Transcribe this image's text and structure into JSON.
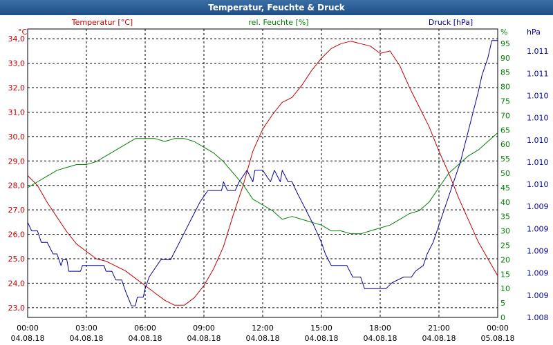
{
  "window": {
    "title": "Temperatur, Feuchte & Druck"
  },
  "chart_data": {
    "type": "line",
    "title": "Temperatur, Feuchte & Druck",
    "x_ticks": [
      {
        "time": "00:00",
        "date": "04.08.18",
        "hour": 0
      },
      {
        "time": "03:00",
        "date": "04.08.18",
        "hour": 3
      },
      {
        "time": "06:00",
        "date": "04.08.18",
        "hour": 6
      },
      {
        "time": "09:00",
        "date": "04.08.18",
        "hour": 9
      },
      {
        "time": "12:00",
        "date": "04.08.18",
        "hour": 12
      },
      {
        "time": "15:00",
        "date": "04.08.18",
        "hour": 15
      },
      {
        "time": "18:00",
        "date": "04.08.18",
        "hour": 18
      },
      {
        "time": "21:00",
        "date": "04.08.18",
        "hour": 21
      },
      {
        "time": "00:00",
        "date": "05.08.18",
        "hour": 24
      }
    ],
    "xlim": [
      0,
      24
    ],
    "grid": true,
    "axes": {
      "temperature": {
        "label": "Temperatur [°C]",
        "unit": "°C",
        "color": "#c00000",
        "side": "left",
        "ylim": [
          22.6,
          34.4
        ],
        "tick_values": [
          23.0,
          24.0,
          25.0,
          26.0,
          27.0,
          28.0,
          29.0,
          30.0,
          31.0,
          32.0,
          33.0,
          34.0
        ],
        "tick_labels": [
          "23,0",
          "24,0",
          "25,0",
          "26,0",
          "27,0",
          "28,0",
          "29,0",
          "30,0",
          "31,0",
          "32,0",
          "33,0",
          "34,0"
        ]
      },
      "humidity": {
        "label": "rel. Feuchte [%]",
        "unit": "%",
        "color": "#008000",
        "side": "right",
        "ylim": [
          0,
          100
        ],
        "tick_values": [
          0,
          5,
          10,
          15,
          20,
          25,
          30,
          35,
          40,
          45,
          50,
          55,
          60,
          65,
          70,
          75,
          80,
          85,
          90,
          95
        ],
        "tick_labels": [
          "0",
          "5",
          "10",
          "15",
          "20",
          "25",
          "30",
          "35",
          "40",
          "45",
          "50",
          "55",
          "60",
          "65",
          "70",
          "75",
          "80",
          "85",
          "90",
          "95"
        ]
      },
      "pressure": {
        "label": "Druck [hPa]",
        "unit": "hPa",
        "color": "#000099",
        "side": "right-outer",
        "ylim": [
          0,
          100
        ],
        "tick_values": [
          0,
          7.7,
          15.4,
          23.1,
          30.8,
          38.5,
          46.2,
          53.8,
          61.5,
          69.2,
          76.9,
          84.6,
          92.3
        ],
        "tick_labels": [
          "1.008",
          "1.009",
          "1.009",
          "1.009",
          "1.009",
          "1.009",
          "1.010",
          "1.010",
          "1.010",
          "1.010",
          "1.010",
          "1.011",
          "1.011"
        ]
      }
    },
    "series": [
      {
        "name": "Temperatur",
        "axis": "temperature",
        "points": [
          [
            0,
            28.4
          ],
          [
            0.5,
            28.0
          ],
          [
            1,
            27.3
          ],
          [
            1.5,
            26.7
          ],
          [
            2,
            26.1
          ],
          [
            2.5,
            25.6
          ],
          [
            3,
            25.3
          ],
          [
            3.5,
            25.0
          ],
          [
            4,
            24.9
          ],
          [
            4.5,
            24.7
          ],
          [
            5,
            24.5
          ],
          [
            5.5,
            24.2
          ],
          [
            6,
            23.9
          ],
          [
            6.5,
            23.6
          ],
          [
            7,
            23.3
          ],
          [
            7.5,
            23.1
          ],
          [
            8,
            23.1
          ],
          [
            8.5,
            23.4
          ],
          [
            9,
            23.9
          ],
          [
            9.5,
            24.6
          ],
          [
            10,
            25.5
          ],
          [
            10.5,
            26.8
          ],
          [
            11,
            28.0
          ],
          [
            11.5,
            29.4
          ],
          [
            12,
            30.3
          ],
          [
            12.5,
            30.9
          ],
          [
            13,
            31.4
          ],
          [
            13.5,
            31.6
          ],
          [
            14,
            32.1
          ],
          [
            14.5,
            32.7
          ],
          [
            15,
            33.2
          ],
          [
            15.5,
            33.6
          ],
          [
            16,
            33.8
          ],
          [
            16.5,
            33.9
          ],
          [
            17,
            33.8
          ],
          [
            17.5,
            33.7
          ],
          [
            18,
            33.4
          ],
          [
            18.5,
            33.5
          ],
          [
            19,
            32.9
          ],
          [
            19.5,
            32.0
          ],
          [
            20,
            31.2
          ],
          [
            20.5,
            30.4
          ],
          [
            21,
            29.4
          ],
          [
            21.5,
            28.5
          ],
          [
            22,
            27.5
          ],
          [
            22.5,
            26.6
          ],
          [
            23,
            25.7
          ],
          [
            23.5,
            25.0
          ],
          [
            24,
            24.3
          ]
        ]
      },
      {
        "name": "rel. Feuchte",
        "axis": "humidity",
        "points": [
          [
            0,
            45
          ],
          [
            0.5,
            47
          ],
          [
            1,
            49
          ],
          [
            1.5,
            51
          ],
          [
            2,
            52
          ],
          [
            2.5,
            53
          ],
          [
            3,
            53
          ],
          [
            3.5,
            54
          ],
          [
            4,
            56
          ],
          [
            4.5,
            58
          ],
          [
            5,
            60
          ],
          [
            5.5,
            62
          ],
          [
            6,
            62
          ],
          [
            6.5,
            62
          ],
          [
            7,
            61
          ],
          [
            7.5,
            62
          ],
          [
            8,
            62
          ],
          [
            8.5,
            61
          ],
          [
            9,
            59
          ],
          [
            9.5,
            57
          ],
          [
            10,
            54
          ],
          [
            10.5,
            50
          ],
          [
            11,
            46
          ],
          [
            11.5,
            41
          ],
          [
            12,
            39
          ],
          [
            12.5,
            37
          ],
          [
            13,
            34
          ],
          [
            13.5,
            35
          ],
          [
            14,
            34
          ],
          [
            14.5,
            33
          ],
          [
            15,
            32
          ],
          [
            15.5,
            30
          ],
          [
            16,
            30
          ],
          [
            16.5,
            29
          ],
          [
            17,
            29
          ],
          [
            17.5,
            30
          ],
          [
            18,
            31
          ],
          [
            18.5,
            32
          ],
          [
            19,
            34
          ],
          [
            19.5,
            36
          ],
          [
            20,
            37
          ],
          [
            20.5,
            40
          ],
          [
            21,
            45
          ],
          [
            21.5,
            50
          ],
          [
            22,
            53
          ],
          [
            22.5,
            56
          ],
          [
            23,
            58
          ],
          [
            23.5,
            61
          ],
          [
            24,
            64
          ]
        ]
      },
      {
        "name": "Druck",
        "axis": "pressure",
        "points": [
          [
            0,
            33
          ],
          [
            0.2,
            30
          ],
          [
            0.5,
            30
          ],
          [
            0.7,
            26
          ],
          [
            1,
            26
          ],
          [
            1.3,
            22
          ],
          [
            1.5,
            22
          ],
          [
            1.7,
            18
          ],
          [
            1.8,
            20
          ],
          [
            2,
            20
          ],
          [
            2.1,
            16
          ],
          [
            2.5,
            16
          ],
          [
            2.7,
            16
          ],
          [
            2.8,
            18
          ],
          [
            3.5,
            18
          ],
          [
            3.9,
            18
          ],
          [
            4,
            16
          ],
          [
            4.3,
            16
          ],
          [
            4.5,
            13
          ],
          [
            4.8,
            13
          ],
          [
            5,
            9
          ],
          [
            5.3,
            4
          ],
          [
            5.5,
            4
          ],
          [
            5.6,
            7
          ],
          [
            5.9,
            7
          ],
          [
            6,
            10
          ],
          [
            6.2,
            14
          ],
          [
            6.5,
            17
          ],
          [
            6.8,
            20
          ],
          [
            7.3,
            20
          ],
          [
            7.6,
            24
          ],
          [
            7.9,
            28
          ],
          [
            8.2,
            32
          ],
          [
            8.5,
            36
          ],
          [
            8.8,
            40
          ],
          [
            9.2,
            44
          ],
          [
            9.9,
            44
          ],
          [
            10,
            47
          ],
          [
            10.2,
            44
          ],
          [
            10.6,
            44
          ],
          [
            10.8,
            47
          ],
          [
            11.2,
            51
          ],
          [
            11.5,
            47
          ],
          [
            11.6,
            51
          ],
          [
            12,
            51
          ],
          [
            12.4,
            47
          ],
          [
            12.6,
            51
          ],
          [
            12.9,
            47
          ],
          [
            13,
            51
          ],
          [
            13.3,
            47
          ],
          [
            13.5,
            47
          ],
          [
            13.7,
            44
          ],
          [
            14,
            40
          ],
          [
            14.3,
            36
          ],
          [
            14.6,
            32
          ],
          [
            15,
            26
          ],
          [
            15.2,
            22
          ],
          [
            15.5,
            18
          ],
          [
            16.3,
            18
          ],
          [
            16.6,
            14
          ],
          [
            17,
            14
          ],
          [
            17.2,
            10
          ],
          [
            18,
            10
          ],
          [
            18.3,
            10
          ],
          [
            18.6,
            12
          ],
          [
            19.2,
            14
          ],
          [
            19.6,
            14
          ],
          [
            19.8,
            16
          ],
          [
            20.2,
            18
          ],
          [
            20.4,
            22
          ],
          [
            20.7,
            26
          ],
          [
            20.9,
            30
          ],
          [
            21.2,
            36
          ],
          [
            21.5,
            42
          ],
          [
            21.8,
            48
          ],
          [
            22.1,
            54
          ],
          [
            22.4,
            62
          ],
          [
            22.7,
            70
          ],
          [
            23,
            78
          ],
          [
            23.2,
            84
          ],
          [
            23.5,
            90
          ],
          [
            23.7,
            96
          ],
          [
            24,
            96
          ]
        ]
      }
    ]
  }
}
